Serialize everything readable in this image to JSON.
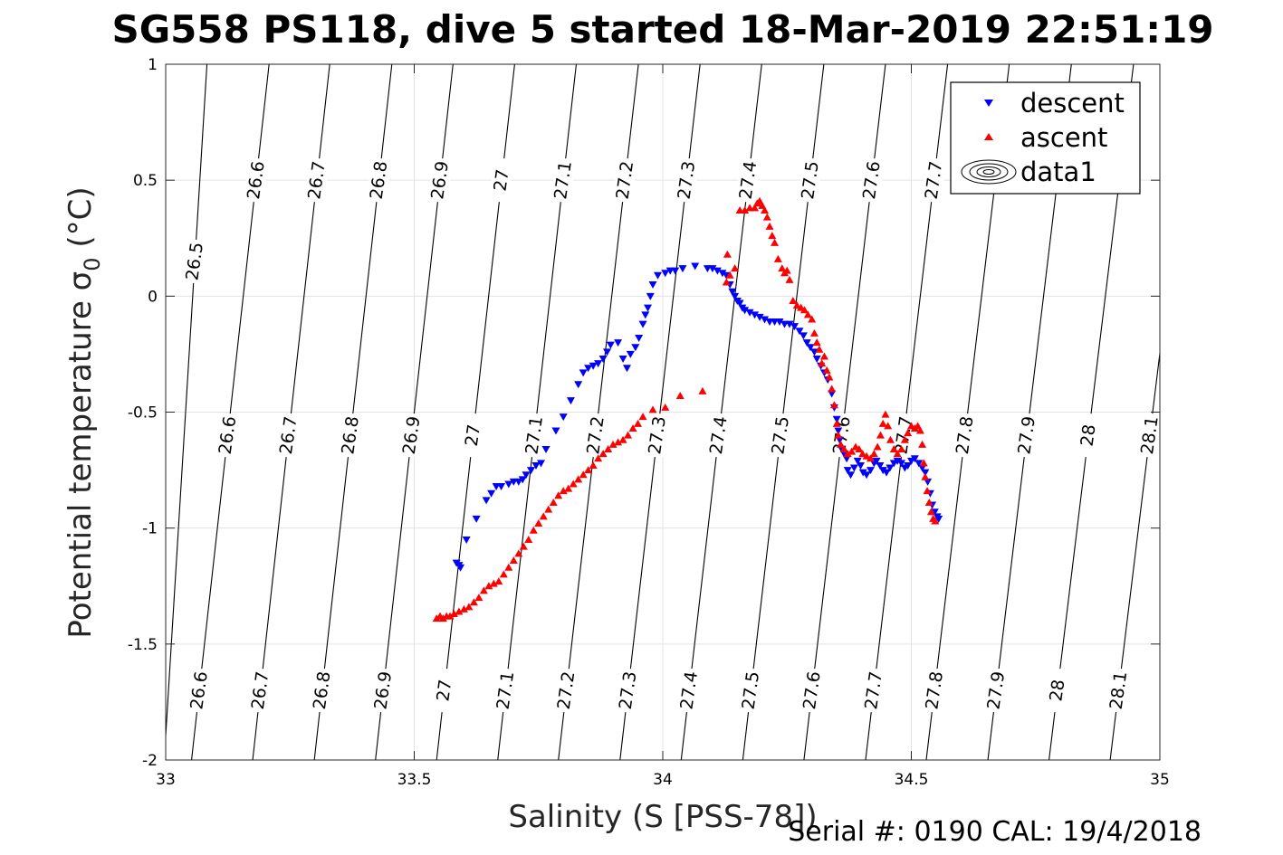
{
  "chart_data": {
    "type": "scatter",
    "title": "SG558 PS118, dive 5 started 18-Mar-2019 22:51:19",
    "xlabel": "Salinity (S [PSS-78])",
    "ylabel": "Potential temperature σ",
    "ylabel_sub": "0",
    "ylabel_unit": " (°C)",
    "xlim": [
      33,
      35
    ],
    "ylim": [
      -2,
      1
    ],
    "xticks": [
      33,
      33.5,
      34,
      34.5,
      35
    ],
    "xtick_labels": [
      "33",
      "33.5",
      "34",
      "34.5",
      "35"
    ],
    "yticks": [
      1,
      0.5,
      0,
      -0.5,
      -1,
      -1.5,
      -2
    ],
    "ytick_labels": [
      "1",
      "0.5",
      "0",
      "-0.5",
      "-1",
      "-1.5",
      "-2"
    ],
    "grid": true,
    "legend_position": "top-right",
    "legend": [
      {
        "name": "descent",
        "marker": "down-triangle",
        "color": "#0000ff"
      },
      {
        "name": "ascent",
        "marker": "up-triangle",
        "color": "#ff0000"
      },
      {
        "name": "data1",
        "marker": "contour",
        "color": "#000000"
      }
    ],
    "contours": [
      {
        "level": 26.5,
        "label": "26.5",
        "s_bottom": 32.997,
        "s_top": 33.083
      },
      {
        "level": 26.6,
        "label": "26.6",
        "s_bottom": 33.052,
        "s_top": 33.208
      },
      {
        "level": 26.7,
        "label": "26.7",
        "s_bottom": 33.175,
        "s_top": 33.33
      },
      {
        "level": 26.8,
        "label": "26.8",
        "s_bottom": 33.299,
        "s_top": 33.455
      },
      {
        "level": 26.9,
        "label": "26.9",
        "s_bottom": 33.422,
        "s_top": 33.578
      },
      {
        "level": 27.0,
        "label": "27",
        "s_bottom": 33.545,
        "s_top": 33.702
      },
      {
        "level": 27.1,
        "label": "27.1",
        "s_bottom": 33.668,
        "s_top": 33.826
      },
      {
        "level": 27.2,
        "label": "27.2",
        "s_bottom": 33.79,
        "s_top": 33.951
      },
      {
        "level": 27.3,
        "label": "27.3",
        "s_bottom": 33.914,
        "s_top": 34.075
      },
      {
        "level": 27.4,
        "label": "27.4",
        "s_bottom": 34.037,
        "s_top": 34.199
      },
      {
        "level": 27.5,
        "label": "27.5",
        "s_bottom": 34.161,
        "s_top": 34.324
      },
      {
        "level": 27.6,
        "label": "27.6",
        "s_bottom": 34.284,
        "s_top": 34.448
      },
      {
        "level": 27.7,
        "label": "27.7",
        "s_bottom": 34.408,
        "s_top": 34.573
      },
      {
        "level": 27.8,
        "label": "27.8",
        "s_bottom": 34.53,
        "s_top": 34.697
      },
      {
        "level": 27.9,
        "label": "27.9",
        "s_bottom": 34.654,
        "s_top": 34.822
      },
      {
        "level": 28.0,
        "label": "28",
        "s_bottom": 34.777,
        "s_top": 34.947
      },
      {
        "level": 28.1,
        "label": "28.1",
        "s_bottom": 34.9,
        "s_top": 35.071
      }
    ],
    "contour_label_rows": [
      {
        "theta": 0.5,
        "levels": [
          26.6,
          26.7,
          26.8,
          26.9,
          27.0,
          27.1,
          27.2,
          27.3,
          27.4,
          27.5,
          27.6,
          27.7
        ]
      },
      {
        "theta": 0.15,
        "levels": [
          26.5
        ]
      },
      {
        "theta": -0.6,
        "levels": [
          26.6,
          26.7,
          26.8,
          26.9,
          27.0,
          27.1,
          27.2,
          27.3,
          27.4,
          27.5,
          27.6,
          27.7,
          27.8,
          27.9,
          28.0,
          28.1
        ]
      },
      {
        "theta": -1.7,
        "levels": [
          26.6,
          26.7,
          26.8,
          26.9,
          27.0,
          27.1,
          27.2,
          27.3,
          27.4,
          27.5,
          27.6,
          27.7,
          27.8,
          27.9,
          28.0,
          28.1
        ]
      }
    ],
    "series": [
      {
        "name": "descent",
        "color": "#0000ff",
        "points": [
          [
            33.585,
            -1.15
          ],
          [
            33.59,
            -1.16
          ],
          [
            33.593,
            -1.17
          ],
          [
            33.605,
            -1.05
          ],
          [
            33.625,
            -0.96
          ],
          [
            33.645,
            -0.88
          ],
          [
            33.655,
            -0.85
          ],
          [
            33.665,
            -0.82
          ],
          [
            33.675,
            -0.82
          ],
          [
            33.69,
            -0.81
          ],
          [
            33.7,
            -0.8
          ],
          [
            33.71,
            -0.8
          ],
          [
            33.718,
            -0.79
          ],
          [
            33.725,
            -0.77
          ],
          [
            33.735,
            -0.75
          ],
          [
            33.745,
            -0.73
          ],
          [
            33.755,
            -0.72
          ],
          [
            33.765,
            -0.66
          ],
          [
            33.785,
            -0.58
          ],
          [
            33.8,
            -0.52
          ],
          [
            33.815,
            -0.45
          ],
          [
            33.83,
            -0.38
          ],
          [
            33.84,
            -0.33
          ],
          [
            33.85,
            -0.31
          ],
          [
            33.86,
            -0.3
          ],
          [
            33.87,
            -0.29
          ],
          [
            33.88,
            -0.27
          ],
          [
            33.888,
            -0.24
          ],
          [
            33.895,
            -0.21
          ],
          [
            33.91,
            -0.2
          ],
          [
            33.92,
            -0.27
          ],
          [
            33.928,
            -0.31
          ],
          [
            33.935,
            -0.25
          ],
          [
            33.945,
            -0.22
          ],
          [
            33.952,
            -0.18
          ],
          [
            33.96,
            -0.12
          ],
          [
            33.965,
            -0.08
          ],
          [
            33.97,
            -0.05
          ],
          [
            33.975,
            0.0
          ],
          [
            33.98,
            0.05
          ],
          [
            33.99,
            0.09
          ],
          [
            34.005,
            0.1
          ],
          [
            34.015,
            0.11
          ],
          [
            34.025,
            0.11
          ],
          [
            34.04,
            0.12
          ],
          [
            34.065,
            0.13
          ],
          [
            34.09,
            0.12
          ],
          [
            34.1,
            0.12
          ],
          [
            34.11,
            0.11
          ],
          [
            34.12,
            0.1
          ],
          [
            34.128,
            0.09
          ],
          [
            34.135,
            0.05
          ],
          [
            34.14,
            0.02
          ],
          [
            34.145,
            0.0
          ],
          [
            34.15,
            -0.02
          ],
          [
            34.155,
            -0.03
          ],
          [
            34.16,
            -0.05
          ],
          [
            34.165,
            -0.06
          ],
          [
            34.175,
            -0.07
          ],
          [
            34.185,
            -0.08
          ],
          [
            34.195,
            -0.09
          ],
          [
            34.205,
            -0.1
          ],
          [
            34.215,
            -0.11
          ],
          [
            34.225,
            -0.11
          ],
          [
            34.235,
            -0.11
          ],
          [
            34.245,
            -0.12
          ],
          [
            34.255,
            -0.12
          ],
          [
            34.265,
            -0.13
          ],
          [
            34.275,
            -0.15
          ],
          [
            34.283,
            -0.17
          ],
          [
            34.29,
            -0.2
          ],
          [
            34.297,
            -0.22
          ],
          [
            34.305,
            -0.24
          ],
          [
            34.31,
            -0.27
          ],
          [
            34.318,
            -0.3
          ],
          [
            34.325,
            -0.33
          ],
          [
            34.332,
            -0.36
          ],
          [
            34.34,
            -0.42
          ],
          [
            34.345,
            -0.48
          ],
          [
            34.35,
            -0.53
          ],
          [
            34.353,
            -0.58
          ],
          [
            34.356,
            -0.62
          ],
          [
            34.36,
            -0.66
          ],
          [
            34.365,
            -0.68
          ],
          [
            34.37,
            -0.7
          ],
          [
            34.372,
            -0.75
          ],
          [
            34.378,
            -0.77
          ],
          [
            34.385,
            -0.74
          ],
          [
            34.392,
            -0.71
          ],
          [
            34.398,
            -0.73
          ],
          [
            34.403,
            -0.76
          ],
          [
            34.41,
            -0.77
          ],
          [
            34.418,
            -0.75
          ],
          [
            34.425,
            -0.72
          ],
          [
            34.43,
            -0.71
          ],
          [
            34.437,
            -0.73
          ],
          [
            34.443,
            -0.75
          ],
          [
            34.45,
            -0.76
          ],
          [
            34.457,
            -0.74
          ],
          [
            34.465,
            -0.72
          ],
          [
            34.472,
            -0.71
          ],
          [
            34.48,
            -0.72
          ],
          [
            34.487,
            -0.74
          ],
          [
            34.493,
            -0.73
          ],
          [
            34.5,
            -0.71
          ],
          [
            34.507,
            -0.7
          ],
          [
            34.515,
            -0.72
          ],
          [
            34.522,
            -0.74
          ],
          [
            34.528,
            -0.76
          ],
          [
            34.533,
            -0.8
          ],
          [
            34.538,
            -0.85
          ],
          [
            34.542,
            -0.9
          ],
          [
            34.547,
            -0.93
          ],
          [
            34.552,
            -0.95
          ],
          [
            34.555,
            -0.96
          ]
        ]
      },
      {
        "name": "ascent",
        "color": "#ff0000",
        "points": [
          [
            33.545,
            -1.39
          ],
          [
            33.552,
            -1.38
          ],
          [
            33.558,
            -1.39
          ],
          [
            33.565,
            -1.38
          ],
          [
            33.572,
            -1.38
          ],
          [
            33.58,
            -1.37
          ],
          [
            33.59,
            -1.36
          ],
          [
            33.6,
            -1.35
          ],
          [
            33.61,
            -1.34
          ],
          [
            33.62,
            -1.32
          ],
          [
            33.63,
            -1.3
          ],
          [
            33.64,
            -1.27
          ],
          [
            33.65,
            -1.25
          ],
          [
            33.66,
            -1.24
          ],
          [
            33.67,
            -1.23
          ],
          [
            33.68,
            -1.2
          ],
          [
            33.69,
            -1.17
          ],
          [
            33.7,
            -1.14
          ],
          [
            33.71,
            -1.11
          ],
          [
            33.72,
            -1.08
          ],
          [
            33.73,
            -1.05
          ],
          [
            33.74,
            -1.01
          ],
          [
            33.75,
            -0.98
          ],
          [
            33.76,
            -0.95
          ],
          [
            33.77,
            -0.92
          ],
          [
            33.78,
            -0.89
          ],
          [
            33.79,
            -0.86
          ],
          [
            33.8,
            -0.84
          ],
          [
            33.81,
            -0.83
          ],
          [
            33.82,
            -0.81
          ],
          [
            33.83,
            -0.79
          ],
          [
            33.84,
            -0.77
          ],
          [
            33.85,
            -0.75
          ],
          [
            33.86,
            -0.73
          ],
          [
            33.87,
            -0.7
          ],
          [
            33.88,
            -0.68
          ],
          [
            33.89,
            -0.66
          ],
          [
            33.9,
            -0.64
          ],
          [
            33.91,
            -0.63
          ],
          [
            33.92,
            -0.62
          ],
          [
            33.93,
            -0.6
          ],
          [
            33.94,
            -0.57
          ],
          [
            33.95,
            -0.55
          ],
          [
            33.96,
            -0.52
          ],
          [
            33.98,
            -0.49
          ],
          [
            34.005,
            -0.48
          ],
          [
            34.035,
            -0.43
          ],
          [
            34.08,
            -0.41
          ],
          [
            34.13,
            0.18
          ],
          [
            34.128,
            0.06
          ],
          [
            34.135,
            0.09
          ],
          [
            34.145,
            0.12
          ],
          [
            34.155,
            0.37
          ],
          [
            34.165,
            0.37
          ],
          [
            34.175,
            0.38
          ],
          [
            34.185,
            0.38
          ],
          [
            34.19,
            0.4
          ],
          [
            34.195,
            0.41
          ],
          [
            34.2,
            0.39
          ],
          [
            34.205,
            0.37
          ],
          [
            34.21,
            0.34
          ],
          [
            34.215,
            0.3
          ],
          [
            34.22,
            0.26
          ],
          [
            34.225,
            0.23
          ],
          [
            34.232,
            0.16
          ],
          [
            34.24,
            0.12
          ],
          [
            34.245,
            0.1
          ],
          [
            34.25,
            0.11
          ],
          [
            34.255,
            0.07
          ],
          [
            34.262,
            -0.02
          ],
          [
            34.27,
            -0.04
          ],
          [
            34.278,
            -0.05
          ],
          [
            34.285,
            -0.06
          ],
          [
            34.292,
            -0.08
          ],
          [
            34.3,
            -0.1
          ],
          [
            34.305,
            -0.16
          ],
          [
            34.31,
            -0.2
          ],
          [
            34.315,
            -0.23
          ],
          [
            34.32,
            -0.29
          ],
          [
            34.325,
            -0.26
          ],
          [
            34.33,
            -0.32
          ],
          [
            34.335,
            -0.35
          ],
          [
            34.34,
            -0.4
          ],
          [
            34.345,
            -0.47
          ],
          [
            34.35,
            -0.55
          ],
          [
            34.353,
            -0.6
          ],
          [
            34.358,
            -0.64
          ],
          [
            34.365,
            -0.66
          ],
          [
            34.372,
            -0.68
          ],
          [
            34.38,
            -0.67
          ],
          [
            34.388,
            -0.65
          ],
          [
            34.395,
            -0.66
          ],
          [
            34.402,
            -0.68
          ],
          [
            34.41,
            -0.69
          ],
          [
            34.418,
            -0.7
          ],
          [
            34.425,
            -0.68
          ],
          [
            34.432,
            -0.65
          ],
          [
            34.438,
            -0.6
          ],
          [
            34.443,
            -0.55
          ],
          [
            34.448,
            -0.51
          ],
          [
            34.453,
            -0.56
          ],
          [
            34.458,
            -0.62
          ],
          [
            34.465,
            -0.66
          ],
          [
            34.472,
            -0.68
          ],
          [
            34.48,
            -0.66
          ],
          [
            34.487,
            -0.62
          ],
          [
            34.493,
            -0.59
          ],
          [
            34.5,
            -0.56
          ],
          [
            34.507,
            -0.57
          ],
          [
            34.513,
            -0.56
          ],
          [
            34.518,
            -0.58
          ],
          [
            34.522,
            -0.64
          ],
          [
            34.525,
            -0.72
          ],
          [
            34.528,
            -0.78
          ],
          [
            34.532,
            -0.84
          ],
          [
            34.536,
            -0.89
          ],
          [
            34.54,
            -0.93
          ],
          [
            34.544,
            -0.96
          ],
          [
            34.548,
            -0.97
          ]
        ]
      }
    ]
  },
  "footer": {
    "serial": "Serial #: 0190  CAL: 19/4/2018"
  }
}
